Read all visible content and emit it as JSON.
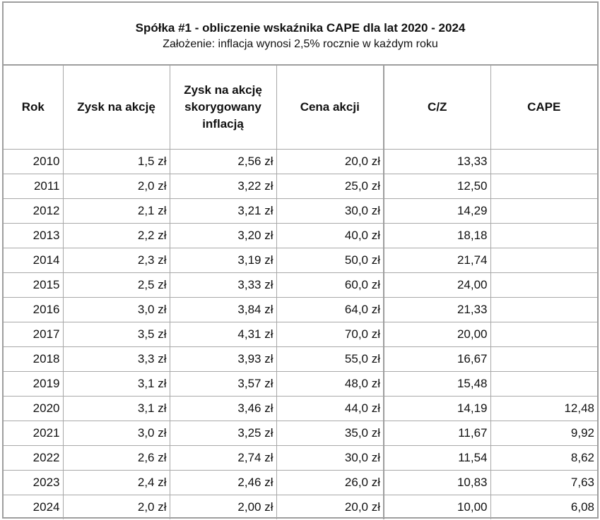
{
  "title": "Spółka #1 - obliczenie wskaźnika CAPE dla lat 2020 - 2024",
  "subtitle": "Założenie: inflacja wynosi 2,5% rocznie w każdym roku",
  "headers": [
    "Rok",
    "Zysk na akcję",
    "Zysk na akcję skorygowany inflacją",
    "Cena akcji",
    "C/Z",
    "CAPE"
  ],
  "rows": [
    [
      "2010",
      "1,5 zł",
      "2,56 zł",
      "20,0 zł",
      "13,33",
      ""
    ],
    [
      "2011",
      "2,0 zł",
      "3,22 zł",
      "25,0 zł",
      "12,50",
      ""
    ],
    [
      "2012",
      "2,1 zł",
      "3,21 zł",
      "30,0 zł",
      "14,29",
      ""
    ],
    [
      "2013",
      "2,2 zł",
      "3,20 zł",
      "40,0 zł",
      "18,18",
      ""
    ],
    [
      "2014",
      "2,3 zł",
      "3,19 zł",
      "50,0 zł",
      "21,74",
      ""
    ],
    [
      "2015",
      "2,5 zł",
      "3,33 zł",
      "60,0 zł",
      "24,00",
      ""
    ],
    [
      "2016",
      "3,0 zł",
      "3,84 zł",
      "64,0 zł",
      "21,33",
      ""
    ],
    [
      "2017",
      "3,5 zł",
      "4,31 zł",
      "70,0 zł",
      "20,00",
      ""
    ],
    [
      "2018",
      "3,3 zł",
      "3,93 zł",
      "55,0 zł",
      "16,67",
      ""
    ],
    [
      "2019",
      "3,1 zł",
      "3,57 zł",
      "48,0 zł",
      "15,48",
      ""
    ],
    [
      "2020",
      "3,1 zł",
      "3,46 zł",
      "44,0 zł",
      "14,19",
      "12,48"
    ],
    [
      "2021",
      "3,0 zł",
      "3,25 zł",
      "35,0 zł",
      "11,67",
      "9,92"
    ],
    [
      "2022",
      "2,6 zł",
      "2,74 zł",
      "30,0 zł",
      "11,54",
      "8,62"
    ],
    [
      "2023",
      "2,4 zł",
      "2,46 zł",
      "26,0 zł",
      "10,83",
      "7,63"
    ],
    [
      "2024",
      "2,0 zł",
      "2,00 zł",
      "20,0 zł",
      "10,00",
      "6,08"
    ]
  ]
}
